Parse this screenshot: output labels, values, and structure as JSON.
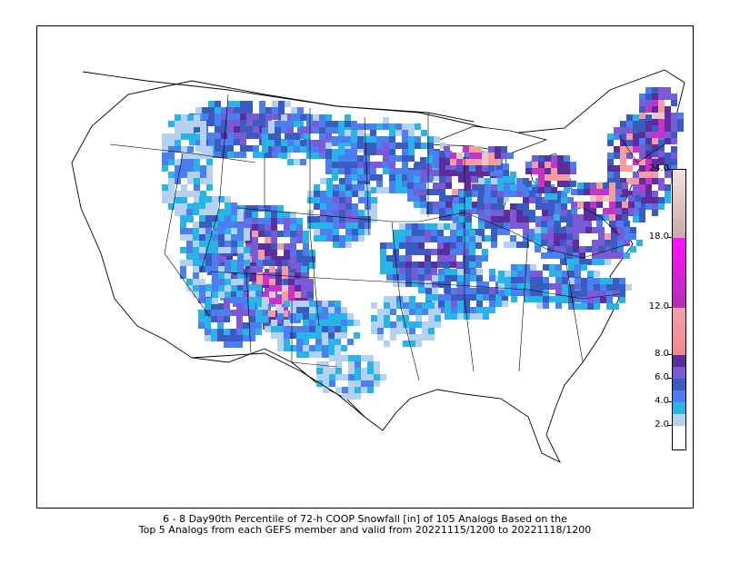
{
  "caption": {
    "line1": "6 - 8 Day90th Percentile of 72-h COOP Snowfall [in] of 105 Analogs Based on the",
    "line2": "Top 5 Analogs from each GEFS member and valid from 20221115/1200 to 20221118/1200"
  },
  "colorbar": {
    "unit": "in",
    "ticks": [
      "2.0",
      "4.0",
      "6.0",
      "8.0",
      "12.0",
      "18.0",
      "24.0"
    ],
    "bins": [
      {
        "from": 0.0,
        "to": 2.0,
        "color": "#ffffff"
      },
      {
        "from": 2.0,
        "to": 3.0,
        "color": "#b4d2ef"
      },
      {
        "from": 3.0,
        "to": 4.0,
        "color": "#28b4e6"
      },
      {
        "from": 4.0,
        "to": 5.0,
        "color": "#4a7ff0"
      },
      {
        "from": 5.0,
        "to": 6.0,
        "color": "#3a5cc0"
      },
      {
        "from": 6.0,
        "to": 7.0,
        "color": "#7a5ad6"
      },
      {
        "from": 7.0,
        "to": 8.0,
        "color": "#5a2e9c"
      },
      {
        "from": 8.0,
        "to": 12.0,
        "color": "#f49ca0"
      },
      {
        "from": 12.0,
        "to": 18.0,
        "color": "#c832c8"
      },
      {
        "from": 18.0,
        "to": 24.0,
        "color": "#e8c8c8"
      }
    ]
  },
  "map": {
    "region": "Contiguous United States",
    "projection": "Lambert Conformal",
    "basemap": [
      "coastlines",
      "country borders",
      "state borders",
      "lakes"
    ],
    "field": "90th percentile 72-h COOP snowfall",
    "notable_maxima": [
      "Colorado Rockies",
      "Northern Maine",
      "Upper Peninsula of Michigan",
      "Lake-effect belts east of the Great Lakes"
    ]
  }
}
